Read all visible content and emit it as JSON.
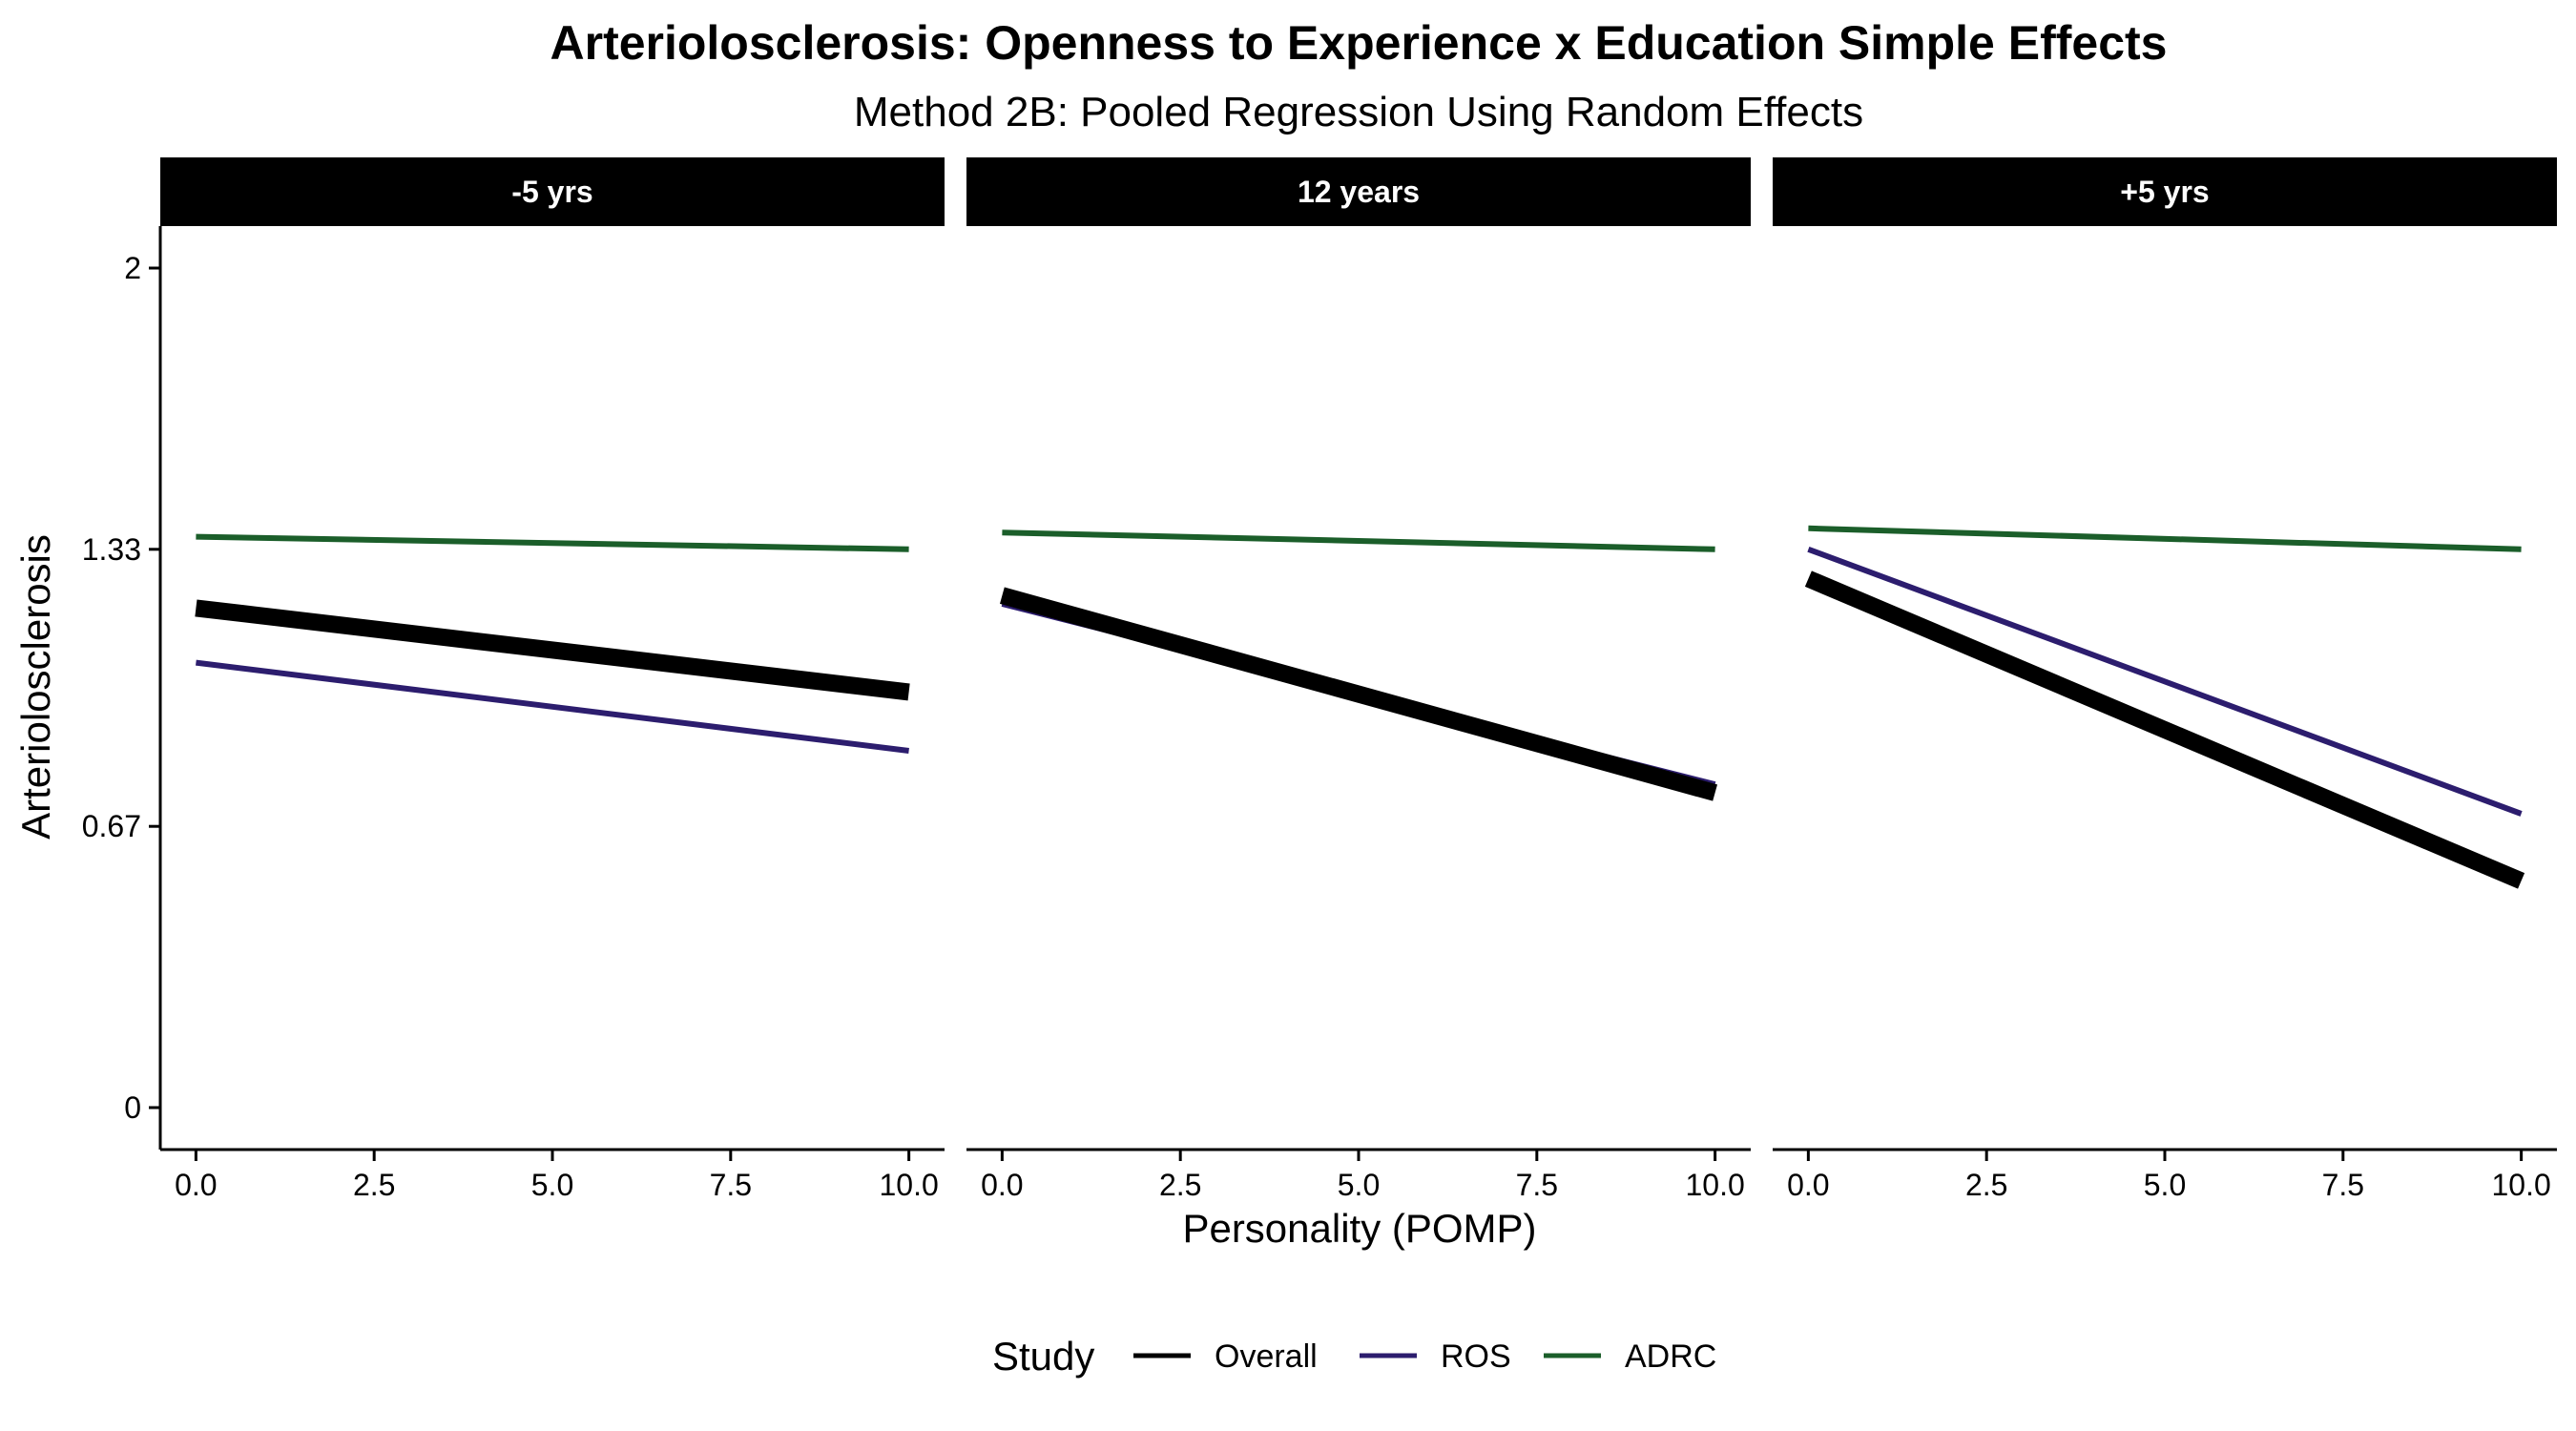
{
  "chart_data": {
    "type": "line",
    "title": "Arteriolosclerosis: Openness to Experience x Education Simple Effects",
    "subtitle": "Method 2B: Pooled Regression Using Random Effects",
    "xlabel": "Personality (POMP)",
    "ylabel": "Arteriolosclerosis",
    "xlim": [
      -0.5,
      10.5
    ],
    "ylim": [
      -0.1,
      2.1
    ],
    "x_ticks": [
      0,
      2.5,
      5,
      7.5,
      10
    ],
    "x_tick_labels": [
      "0.0",
      "2.5",
      "5.0",
      "7.5",
      "10.0"
    ],
    "y_ticks": [
      0,
      0.67,
      1.33,
      2
    ],
    "y_tick_labels": [
      "0",
      "0.67",
      "1.33",
      "2"
    ],
    "legend": {
      "title": "Study",
      "position": "bottom",
      "items": [
        {
          "label": "Overall",
          "color": "#000000"
        },
        {
          "label": "ROS",
          "color": "#2c1d6e"
        },
        {
          "label": "ADRC",
          "color": "#1b5e2a"
        }
      ]
    },
    "panels": [
      {
        "label": "-5 yrs",
        "series": [
          {
            "name": "Overall",
            "color": "#000000",
            "x": [
              0,
              10
            ],
            "y": [
              1.19,
              0.99
            ]
          },
          {
            "name": "ROS",
            "color": "#2c1d6e",
            "x": [
              0,
              10
            ],
            "y": [
              1.06,
              0.85
            ]
          },
          {
            "name": "ADRC",
            "color": "#1b5e2a",
            "x": [
              0,
              10
            ],
            "y": [
              1.36,
              1.33
            ]
          }
        ]
      },
      {
        "label": "12 years",
        "series": [
          {
            "name": "Overall",
            "color": "#000000",
            "x": [
              0,
              10
            ],
            "y": [
              1.22,
              0.75
            ]
          },
          {
            "name": "ROS",
            "color": "#2c1d6e",
            "x": [
              0,
              10
            ],
            "y": [
              1.2,
              0.77
            ]
          },
          {
            "name": "ADRC",
            "color": "#1b5e2a",
            "x": [
              0,
              10
            ],
            "y": [
              1.37,
              1.33
            ]
          }
        ]
      },
      {
        "label": "+5 yrs",
        "series": [
          {
            "name": "Overall",
            "color": "#000000",
            "x": [
              0,
              10
            ],
            "y": [
              1.26,
              0.54
            ]
          },
          {
            "name": "ROS",
            "color": "#2c1d6e",
            "x": [
              0,
              10
            ],
            "y": [
              1.33,
              0.7
            ]
          },
          {
            "name": "ADRC",
            "color": "#1b5e2a",
            "x": [
              0,
              10
            ],
            "y": [
              1.38,
              1.33
            ]
          }
        ]
      }
    ]
  }
}
